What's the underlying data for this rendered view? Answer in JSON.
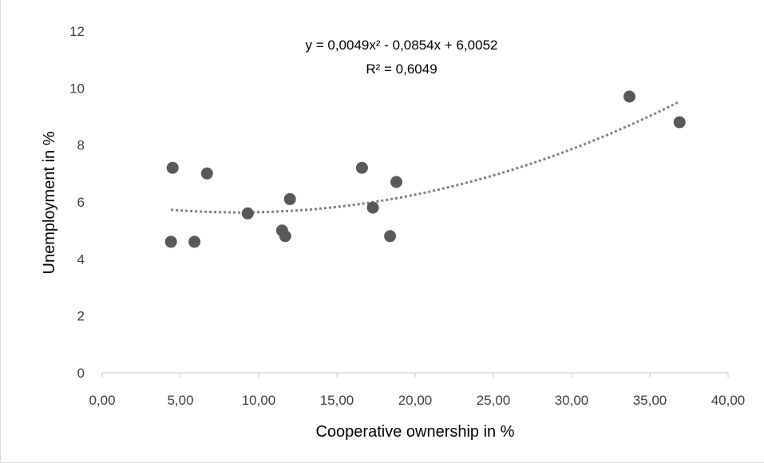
{
  "chart_data": {
    "type": "scatter",
    "xlabel": "Cooperative ownership in %",
    "ylabel": "Unemployment in %",
    "xlim": [
      0,
      40
    ],
    "ylim": [
      0,
      12
    ],
    "x_ticks": [
      "0,00",
      "5,00",
      "10,00",
      "15,00",
      "20,00",
      "25,00",
      "30,00",
      "35,00",
      "40,00"
    ],
    "y_ticks": [
      "0",
      "2",
      "4",
      "6",
      "8",
      "10",
      "12"
    ],
    "grid": false,
    "legend": "none",
    "marker_color": "#595959",
    "trendline_color": "#7f7f7f",
    "points": [
      {
        "x": 4.4,
        "y": 4.6
      },
      {
        "x": 4.5,
        "y": 7.2
      },
      {
        "x": 5.9,
        "y": 4.6
      },
      {
        "x": 6.7,
        "y": 7.0
      },
      {
        "x": 9.3,
        "y": 5.6
      },
      {
        "x": 11.5,
        "y": 5.0
      },
      {
        "x": 11.7,
        "y": 4.8
      },
      {
        "x": 12.0,
        "y": 6.1
      },
      {
        "x": 16.6,
        "y": 7.2
      },
      {
        "x": 17.3,
        "y": 5.8
      },
      {
        "x": 18.4,
        "y": 4.8
      },
      {
        "x": 18.8,
        "y": 6.7
      },
      {
        "x": 33.7,
        "y": 9.7
      },
      {
        "x": 36.9,
        "y": 8.8
      }
    ],
    "trendline": {
      "type": "polynomial",
      "coefficients": [
        0.0049,
        -0.0854,
        6.0052
      ],
      "x_range": [
        4.4,
        36.9
      ],
      "equation": "y = 0,0049x² - 0,0854x + 6,0052",
      "r_squared": "R² = 0,6049"
    }
  }
}
